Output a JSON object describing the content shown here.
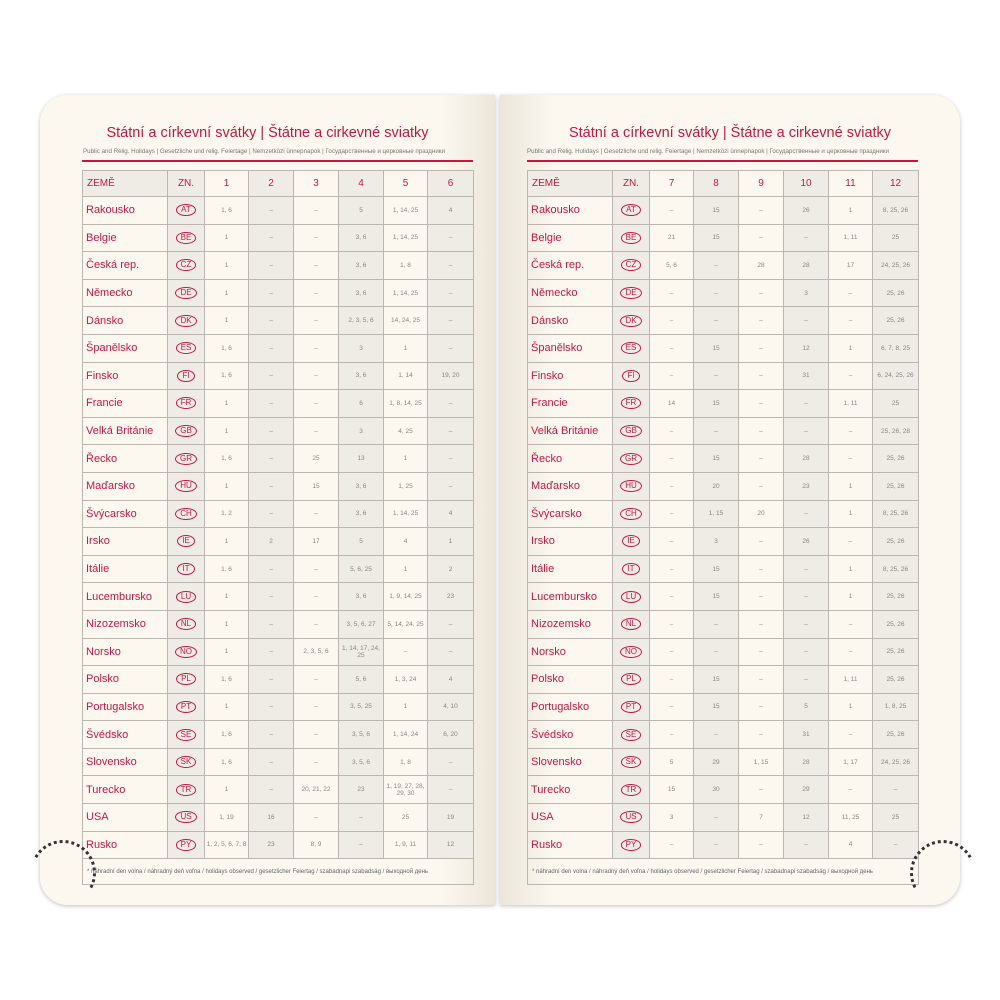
{
  "title": "Státní a církevní svátky | Štátne a cirkevné sviatky",
  "subtitle": "Public and Relig. Holidays | Gesetzliche und relig. Feiertage | Nemzetközi ünnepnapok | Государственные и церковные праздники",
  "footnote": "* náhradní den volna / náhradný deň voľna / holidays observed / gesetzlicher Feiertag / szabadnapi szabadság / выходной день",
  "header_country": "ZEMĚ",
  "header_code": "ZN.",
  "accent_color": "#c8173f",
  "countries": [
    {
      "name": "Rakousko",
      "code": "AT"
    },
    {
      "name": "Belgie",
      "code": "BE"
    },
    {
      "name": "Česká rep.",
      "code": "CZ"
    },
    {
      "name": "Německo",
      "code": "DE"
    },
    {
      "name": "Dánsko",
      "code": "DK"
    },
    {
      "name": "Španělsko",
      "code": "ES"
    },
    {
      "name": "Finsko",
      "code": "FI"
    },
    {
      "name": "Francie",
      "code": "FR"
    },
    {
      "name": "Velká Británie",
      "code": "GB"
    },
    {
      "name": "Řecko",
      "code": "GR"
    },
    {
      "name": "Maďarsko",
      "code": "HU"
    },
    {
      "name": "Švýcarsko",
      "code": "CH"
    },
    {
      "name": "Irsko",
      "code": "IE"
    },
    {
      "name": "Itálie",
      "code": "IT"
    },
    {
      "name": "Lucembursko",
      "code": "LU"
    },
    {
      "name": "Nizozemsko",
      "code": "NL"
    },
    {
      "name": "Norsko",
      "code": "NO"
    },
    {
      "name": "Polsko",
      "code": "PL"
    },
    {
      "name": "Portugalsko",
      "code": "PT"
    },
    {
      "name": "Švédsko",
      "code": "SE"
    },
    {
      "name": "Slovensko",
      "code": "SK"
    },
    {
      "name": "Turecko",
      "code": "TR"
    },
    {
      "name": "USA",
      "code": "US"
    },
    {
      "name": "Rusko",
      "code": "PY"
    }
  ],
  "pages": [
    {
      "months": [
        "1",
        "2",
        "3",
        "4",
        "5",
        "6"
      ],
      "rows": [
        [
          "1, 6",
          "–",
          "–",
          "5",
          "1, 14, 25",
          "4"
        ],
        [
          "1",
          "–",
          "–",
          "3, 6",
          "1, 14, 25",
          "–"
        ],
        [
          "1",
          "–",
          "–",
          "3, 6",
          "1, 8",
          "–"
        ],
        [
          "1",
          "–",
          "–",
          "3, 6",
          "1, 14, 25",
          "–"
        ],
        [
          "1",
          "–",
          "–",
          "2, 3, 5, 6",
          "14, 24, 25",
          "–"
        ],
        [
          "1, 6",
          "–",
          "–",
          "3",
          "1",
          "–"
        ],
        [
          "1, 6",
          "–",
          "–",
          "3, 6",
          "1, 14",
          "19, 20"
        ],
        [
          "1",
          "–",
          "–",
          "6",
          "1, 8, 14, 25",
          "–"
        ],
        [
          "1",
          "–",
          "–",
          "3",
          "4, 25",
          "–"
        ],
        [
          "1, 6",
          "–",
          "25",
          "13",
          "1",
          "–"
        ],
        [
          "1",
          "–",
          "15",
          "3, 6",
          "1, 25",
          "–"
        ],
        [
          "1, 2",
          "–",
          "–",
          "3, 6",
          "1, 14, 25",
          "4"
        ],
        [
          "1",
          "2",
          "17",
          "5",
          "4",
          "1"
        ],
        [
          "1, 6",
          "–",
          "–",
          "5, 6, 25",
          "1",
          "2"
        ],
        [
          "1",
          "–",
          "–",
          "3, 6",
          "1, 9, 14, 25",
          "23"
        ],
        [
          "1",
          "–",
          "–",
          "3, 5, 6, 27",
          "5, 14, 24, 25",
          "–"
        ],
        [
          "1",
          "–",
          "2, 3, 5, 6",
          "1, 14, 17, 24, 25",
          "–",
          "–"
        ],
        [
          "1, 6",
          "–",
          "–",
          "5, 6",
          "1, 3, 24",
          "4"
        ],
        [
          "1",
          "–",
          "–",
          "3, 5, 25",
          "1",
          "4, 10"
        ],
        [
          "1, 6",
          "–",
          "–",
          "3, 5, 6",
          "1, 14, 24",
          "6, 20"
        ],
        [
          "1, 6",
          "–",
          "–",
          "3, 5, 6",
          "1, 8",
          "–"
        ],
        [
          "1",
          "–",
          "20, 21, 22",
          "23",
          "1, 19, 27, 28, 29, 30",
          "–"
        ],
        [
          "1, 19",
          "16",
          "–",
          "–",
          "25",
          "19"
        ],
        [
          "1, 2, 5, 6, 7, 8",
          "23",
          "8, 9",
          "–",
          "1, 9, 11",
          "12"
        ]
      ]
    },
    {
      "months": [
        "7",
        "8",
        "9",
        "10",
        "11",
        "12"
      ],
      "rows": [
        [
          "–",
          "15",
          "–",
          "26",
          "1",
          "8, 25, 26"
        ],
        [
          "21",
          "15",
          "–",
          "–",
          "1, 11",
          "25"
        ],
        [
          "5, 6",
          "–",
          "28",
          "28",
          "17",
          "24, 25, 26"
        ],
        [
          "–",
          "–",
          "–",
          "3",
          "–",
          "25, 26"
        ],
        [
          "–",
          "–",
          "–",
          "–",
          "–",
          "25, 26"
        ],
        [
          "–",
          "15",
          "–",
          "12",
          "1",
          "6, 7, 8, 25"
        ],
        [
          "–",
          "–",
          "–",
          "31",
          "–",
          "6, 24, 25, 26"
        ],
        [
          "14",
          "15",
          "–",
          "–",
          "1, 11",
          "25"
        ],
        [
          "–",
          "–",
          "–",
          "–",
          "–",
          "25, 26, 28"
        ],
        [
          "–",
          "15",
          "–",
          "28",
          "–",
          "25, 26"
        ],
        [
          "–",
          "20",
          "–",
          "23",
          "1",
          "25, 26"
        ],
        [
          "–",
          "1, 15",
          "20",
          "–",
          "1",
          "8, 25, 26"
        ],
        [
          "–",
          "3",
          "–",
          "26",
          "–",
          "25, 26"
        ],
        [
          "–",
          "15",
          "–",
          "–",
          "1",
          "8, 25, 26"
        ],
        [
          "–",
          "15",
          "–",
          "–",
          "1",
          "25, 26"
        ],
        [
          "–",
          "–",
          "–",
          "–",
          "–",
          "25, 26"
        ],
        [
          "–",
          "–",
          "–",
          "–",
          "–",
          "25, 26"
        ],
        [
          "–",
          "15",
          "–",
          "–",
          "1, 11",
          "25, 26"
        ],
        [
          "–",
          "15",
          "–",
          "5",
          "1",
          "1, 8, 25"
        ],
        [
          "–",
          "–",
          "–",
          "31",
          "–",
          "25, 26"
        ],
        [
          "5",
          "29",
          "1, 15",
          "28",
          "1, 17",
          "24, 25, 26"
        ],
        [
          "15",
          "30",
          "–",
          "29",
          "–",
          "–"
        ],
        [
          "3",
          "–",
          "7",
          "12",
          "11, 25",
          "25"
        ],
        [
          "–",
          "–",
          "–",
          "–",
          "4",
          "–"
        ]
      ]
    }
  ]
}
